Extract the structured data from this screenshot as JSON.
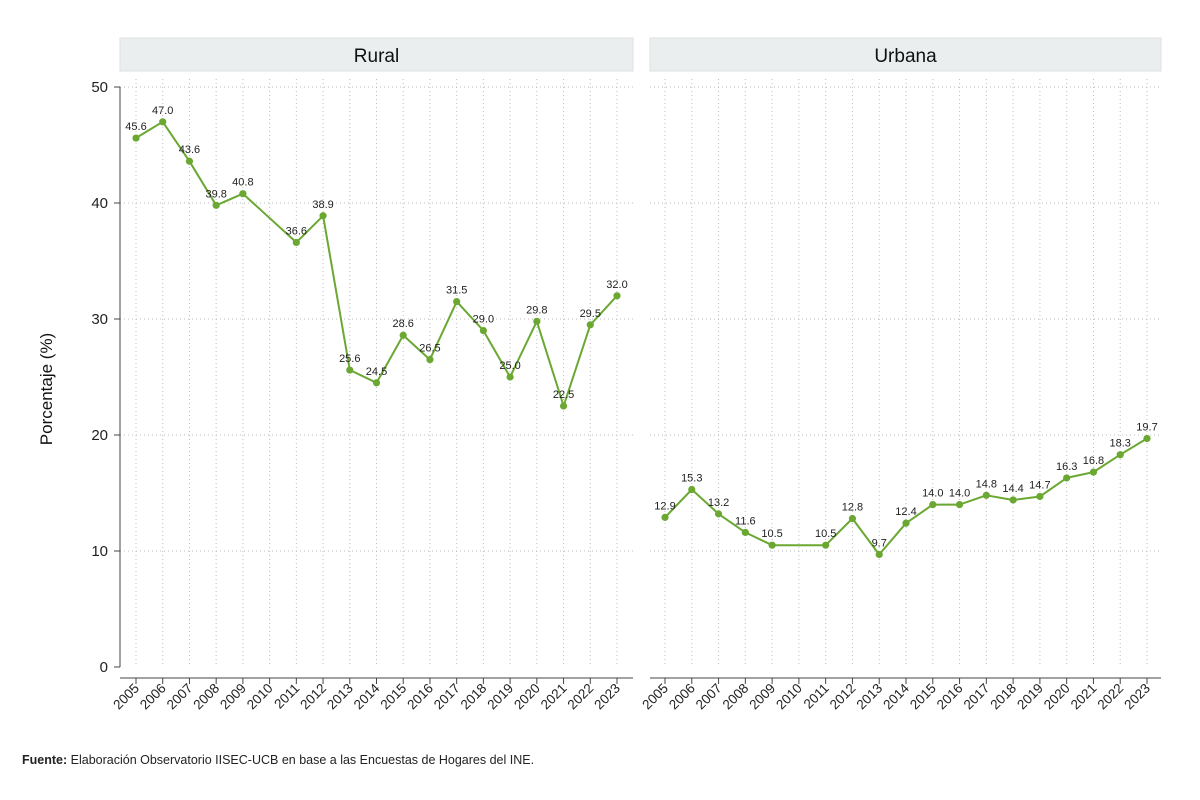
{
  "source": {
    "label": "Fuente:",
    "text": "Elaboración Observatorio IISEC-UCB en base a las Encuestas de Hogares del INE."
  },
  "colors": {
    "line": "#6aa832",
    "strip": "#ebeeee",
    "grid": "#bdbdbd",
    "axis": "#444444"
  },
  "chart_data": {
    "type": "line",
    "ylabel": "Porcentaje (%)",
    "ylim": [
      0,
      50
    ],
    "yticks": [
      0,
      10,
      20,
      30,
      40,
      50
    ],
    "categories": [
      "2005",
      "2006",
      "2007",
      "2008",
      "2009",
      "2010",
      "2011",
      "2012",
      "2013",
      "2014",
      "2015",
      "2016",
      "2017",
      "2018",
      "2019",
      "2020",
      "2021",
      "2022",
      "2023"
    ],
    "panels": [
      {
        "title": "Rural",
        "points": [
          {
            "x": "2005",
            "y": 45.6,
            "label": "45.6"
          },
          {
            "x": "2006",
            "y": 47.0,
            "label": "47.0"
          },
          {
            "x": "2007",
            "y": 43.6,
            "label": "43.6"
          },
          {
            "x": "2008",
            "y": 39.8,
            "label": "39.8"
          },
          {
            "x": "2009",
            "y": 40.8,
            "label": "40.8"
          },
          {
            "x": "2011",
            "y": 36.6,
            "label": "36.6"
          },
          {
            "x": "2012",
            "y": 38.9,
            "label": "38.9"
          },
          {
            "x": "2013",
            "y": 25.6,
            "label": "25.6"
          },
          {
            "x": "2014",
            "y": 24.5,
            "label": "24.5"
          },
          {
            "x": "2015",
            "y": 28.6,
            "label": "28.6"
          },
          {
            "x": "2016",
            "y": 26.5,
            "label": "26.5"
          },
          {
            "x": "2017",
            "y": 31.5,
            "label": "31.5"
          },
          {
            "x": "2018",
            "y": 29.0,
            "label": "29.0"
          },
          {
            "x": "2019",
            "y": 25.0,
            "label": "25.0"
          },
          {
            "x": "2020",
            "y": 29.8,
            "label": "29.8"
          },
          {
            "x": "2021",
            "y": 22.5,
            "label": "22.5"
          },
          {
            "x": "2022",
            "y": 29.5,
            "label": "29.5"
          },
          {
            "x": "2023",
            "y": 32.0,
            "label": "32.0"
          }
        ]
      },
      {
        "title": "Urbana",
        "points": [
          {
            "x": "2005",
            "y": 12.9,
            "label": "12.9"
          },
          {
            "x": "2006",
            "y": 15.3,
            "label": "15.3"
          },
          {
            "x": "2007",
            "y": 13.2,
            "label": "13.2"
          },
          {
            "x": "2008",
            "y": 11.6,
            "label": "11.6"
          },
          {
            "x": "2009",
            "y": 10.5,
            "label": "10.5"
          },
          {
            "x": "2011",
            "y": 10.5,
            "label": "10.5"
          },
          {
            "x": "2012",
            "y": 12.8,
            "label": "12.8"
          },
          {
            "x": "2013",
            "y": 9.7,
            "label": "9.7"
          },
          {
            "x": "2014",
            "y": 12.4,
            "label": "12.4"
          },
          {
            "x": "2015",
            "y": 14.0,
            "label": "14.0"
          },
          {
            "x": "2016",
            "y": 14.0,
            "label": "14.0"
          },
          {
            "x": "2017",
            "y": 14.8,
            "label": "14.8"
          },
          {
            "x": "2018",
            "y": 14.4,
            "label": "14.4"
          },
          {
            "x": "2019",
            "y": 14.7,
            "label": "14.7"
          },
          {
            "x": "2020",
            "y": 16.3,
            "label": "16.3"
          },
          {
            "x": "2021",
            "y": 16.8,
            "label": "16.8"
          },
          {
            "x": "2022",
            "y": 18.3,
            "label": "18.3"
          },
          {
            "x": "2023",
            "y": 19.7,
            "label": "19.7"
          }
        ]
      }
    ]
  }
}
